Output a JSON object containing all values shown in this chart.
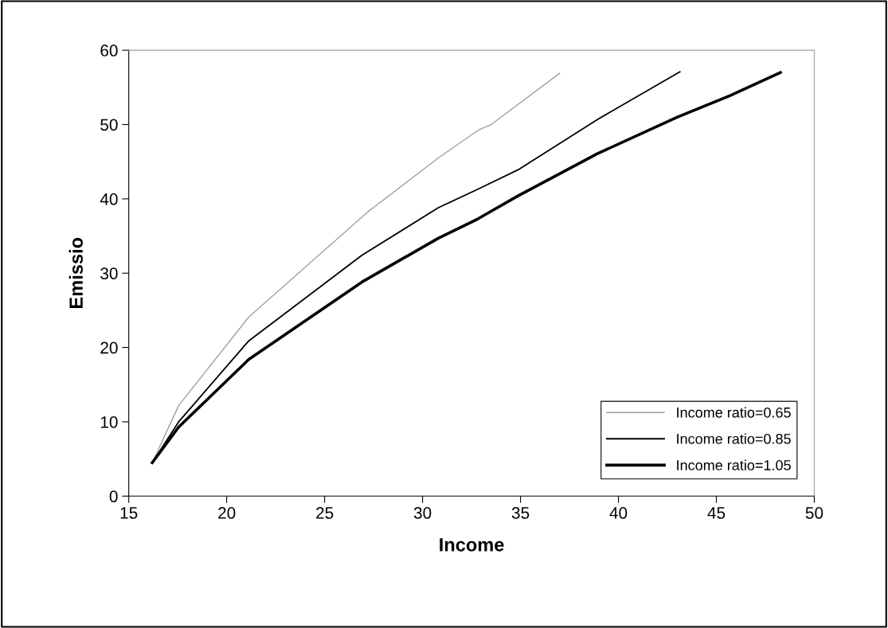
{
  "chart_data": {
    "type": "line",
    "xlabel": "Income",
    "ylabel": "Emissio",
    "xlim": [
      15,
      50
    ],
    "xticks": [
      15,
      20,
      25,
      30,
      35,
      40,
      45,
      50
    ],
    "ylim": [
      0,
      60
    ],
    "yticks": [
      0,
      10,
      20,
      30,
      40,
      50,
      60
    ],
    "grid": false,
    "legend": "bottom right",
    "marker": "none",
    "line_style": "solid",
    "series": [
      {
        "name": "Income ratio=0.65",
        "color": "#a0a0a0",
        "x": [
          16.2,
          17.55,
          21.13,
          27.18,
          30.8,
          32.82,
          33.5,
          37.0
        ],
        "values": [
          4.5,
          12.2,
          24.1,
          38.2,
          45.5,
          49.2,
          50.0,
          56.9
        ]
      },
      {
        "name": "Income ratio=0.85",
        "color": "#000000",
        "x": [
          16.2,
          17.55,
          21.13,
          26.9,
          30.8,
          32.82,
          34.87,
          38.94,
          43.14
        ],
        "values": [
          4.5,
          10.0,
          20.9,
          32.4,
          38.8,
          41.3,
          43.9,
          50.7,
          57.1
        ]
      },
      {
        "name": "Income ratio=1.05",
        "color": "#000000",
        "x": [
          16.2,
          17.55,
          21.13,
          26.9,
          30.8,
          32.82,
          34.87,
          38.94,
          43.01,
          45.7,
          48.27
        ],
        "values": [
          4.5,
          9.3,
          18.4,
          28.8,
          34.7,
          37.3,
          40.4,
          46.1,
          51.0,
          53.9,
          57.0
        ]
      }
    ]
  }
}
